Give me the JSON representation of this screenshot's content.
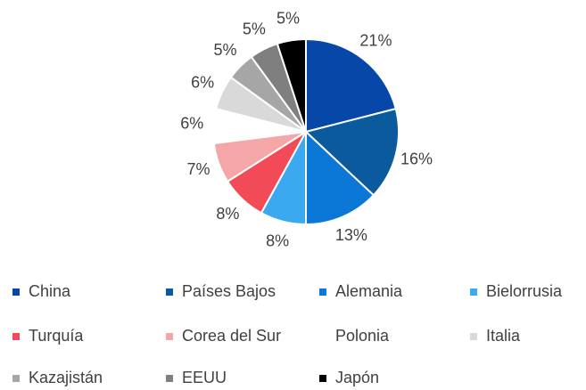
{
  "chart_data": {
    "type": "pie",
    "categories": [
      "China",
      "Países Bajos",
      "Alemania",
      "Bielorrusia",
      "Turquía",
      "Corea del Sur",
      "Polonia",
      "Italia",
      "Kazajistán",
      "EEUU",
      "Japón"
    ],
    "values": [
      21,
      16,
      13,
      8,
      8,
      7,
      6,
      6,
      5,
      5,
      5
    ],
    "value_labels": [
      "21%",
      "16%",
      "13%",
      "8%",
      "8%",
      "7%",
      "6%",
      "6%",
      "5%",
      "5%",
      "5%"
    ],
    "colors": [
      "#0747a8",
      "#0b5a9e",
      "#0b78d8",
      "#3aa9f0",
      "#f24b57",
      "#f5a6a6",
      "#ffffff",
      "#d9d9d9",
      "#a6a6a6",
      "#7f7f7f",
      "#000000"
    ],
    "legend": "bottom"
  }
}
